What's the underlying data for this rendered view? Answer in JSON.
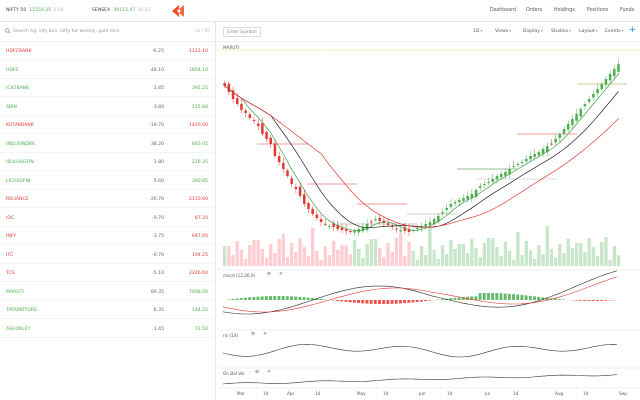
{
  "header": {
    "indices": [
      {
        "name": "NIFTY 50",
        "value": "11559.25",
        "change": "3.60",
        "dir": "up"
      },
      {
        "name": "SENSEX",
        "value": "39113.47",
        "change": "38.55",
        "dir": "up"
      }
    ],
    "nav": [
      "Dashboard",
      "Orders",
      "Holdings",
      "Positions",
      "Funds"
    ],
    "brand_color": "#f04e23"
  },
  "watchlist": {
    "search_placeholder": "Search eg: infy bse, nifty fut weekly, gold mcx",
    "count": "16 / 50",
    "items": [
      {
        "symbol": "HDFCBANK",
        "change": "-6.25",
        "ltp": "1112.10",
        "dir": "dn"
      },
      {
        "symbol": "HDFC",
        "change": "48.10",
        "ltp": "1864.10",
        "dir": "up"
      },
      {
        "symbol": "ICICIBANK",
        "change": "2.85",
        "ltp": "392.25",
        "dir": "up"
      },
      {
        "symbol": "SBIN",
        "change": "3.80",
        "ltp": "215.80",
        "dir": "up"
      },
      {
        "symbol": "KOTAKBANK",
        "change": "-19.70",
        "ltp": "1420.00",
        "dir": "dn"
      },
      {
        "symbol": "INDUSINDBK",
        "change": "38.20",
        "ltp": "665.05",
        "dir": "up"
      },
      {
        "symbol": "IBULHSGFIN",
        "change": "1.80",
        "ltp": "216.35",
        "dir": "up"
      },
      {
        "symbol": "LICHSGFIN",
        "change": "5.60",
        "ltp": "300.85",
        "dir": "up"
      },
      {
        "symbol": "RELIANCE",
        "change": "-26.70",
        "ltp": "2110.60",
        "dir": "dn"
      },
      {
        "symbol": "IOC",
        "change": "-0.70",
        "ltp": "87.20",
        "dir": "dn"
      },
      {
        "symbol": "INFY",
        "change": "-3.75",
        "ltp": "947.00",
        "dir": "dn"
      },
      {
        "symbol": "ITC",
        "change": "-0.70",
        "ltp": "194.25",
        "dir": "dn"
      },
      {
        "symbol": "TCS",
        "change": "-5.10",
        "ltp": "2246.60",
        "dir": "dn"
      },
      {
        "symbol": "MARUTI",
        "change": "89.35",
        "ltp": "7098.00",
        "dir": "up"
      },
      {
        "symbol": "TATAMOTORS",
        "change": "6.35",
        "ltp": "144.25",
        "dir": "up"
      },
      {
        "symbol": "ASHOKLEY",
        "change": "1.45",
        "ltp": "72.50",
        "dir": "up"
      }
    ]
  },
  "chart": {
    "symbol_placeholder": "Enter Symbol",
    "interval": "1D",
    "toolbar": [
      "Views",
      "Display",
      "Studies",
      "Layout",
      "Events"
    ],
    "instrument": "MARUTI",
    "studies": {
      "macd": "macd (12,26,9)",
      "rsi": "rsi (14)",
      "obv": "On Bal Vol"
    },
    "xaxis": [
      "Mar",
      "14",
      "Apr",
      "14",
      "May",
      "14",
      "Jun",
      "14",
      "Jul",
      "14",
      "Aug",
      "14",
      "Sep"
    ],
    "colors": {
      "up": "#4caf50",
      "down": "#e53935",
      "ma_red": "#e53935",
      "ma_black": "#222222",
      "ma_green": "#43a047",
      "accent": "#1e88e5"
    },
    "chart_data": {
      "type": "candlestick",
      "closes": [
        6880,
        6820,
        6750,
        6700,
        6640,
        6610,
        6560,
        6530,
        6480,
        6400,
        6350,
        6300,
        6180,
        6120,
        6050,
        5980,
        5900,
        5850,
        5780,
        5700,
        5650,
        5600,
        5560,
        5520,
        5500,
        5480,
        5470,
        5450,
        5440,
        5430,
        5420,
        5430,
        5450,
        5470,
        5500,
        5520,
        5550,
        5530,
        5510,
        5490,
        5470,
        5450,
        5440,
        5430,
        5420,
        5440,
        5460,
        5480,
        5500,
        5520,
        5550,
        5580,
        5620,
        5660,
        5700,
        5720,
        5740,
        5760,
        5780,
        5800,
        5840,
        5880,
        5900,
        5920,
        5950,
        5980,
        6000,
        6020,
        6050,
        6080,
        6100,
        6120,
        6150,
        6180,
        6200,
        6220,
        6250,
        6280,
        6300,
        6350,
        6400,
        6450,
        6500,
        6550,
        6600,
        6650,
        6700,
        6750,
        6800,
        6850,
        6900,
        6950,
        7000,
        7050,
        7098
      ]
    }
  }
}
